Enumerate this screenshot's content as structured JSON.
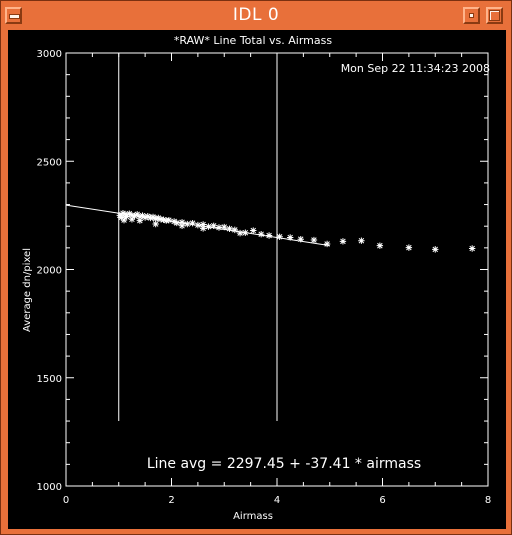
{
  "window": {
    "title": "IDL 0",
    "icons": {
      "menu": "window-menu-icon",
      "minimize": "minimize-icon",
      "maximize": "maximize-icon"
    }
  },
  "colors": {
    "frame": "#e8703a",
    "background": "#000000",
    "foreground": "#ffffff"
  },
  "chart_data": {
    "type": "scatter",
    "title": "*RAW* Line Total vs. Airmass",
    "timestamp": "Mon Sep 22 11:34:23 2008",
    "xlabel": "Airmass",
    "ylabel": "Average dn/pixel",
    "xlim": [
      0,
      8
    ],
    "ylim": [
      1000,
      3000
    ],
    "xticks": [
      0,
      2,
      4,
      6,
      8
    ],
    "yticks": [
      1000,
      1500,
      2000,
      2500,
      3000
    ],
    "xtick_labels": [
      "0",
      "2",
      "4",
      "6",
      "8"
    ],
    "ytick_labels": [
      "1000",
      "1500",
      "2000",
      "2500",
      "3000"
    ],
    "grid": false,
    "marker": "asterisk",
    "fit_line": {
      "intercept": 2297.45,
      "slope": -37.41,
      "x_range": [
        0,
        5
      ]
    },
    "fit_label": "Line avg = 2297.45 + -37.41 * airmass",
    "vertical_lines": [
      {
        "x": 1.0,
        "y_range": [
          1300,
          3000
        ]
      },
      {
        "x": 4.0,
        "y_range": [
          1300,
          3000
        ]
      }
    ],
    "points": [
      {
        "x": 1.02,
        "y": 2250
      },
      {
        "x": 1.05,
        "y": 2240
      },
      {
        "x": 1.08,
        "y": 2260
      },
      {
        "x": 1.12,
        "y": 2255
      },
      {
        "x": 1.15,
        "y": 2245
      },
      {
        "x": 1.2,
        "y": 2258
      },
      {
        "x": 1.25,
        "y": 2250
      },
      {
        "x": 1.3,
        "y": 2247
      },
      {
        "x": 1.35,
        "y": 2255
      },
      {
        "x": 1.4,
        "y": 2244
      },
      {
        "x": 1.45,
        "y": 2249
      },
      {
        "x": 1.5,
        "y": 2240
      },
      {
        "x": 1.55,
        "y": 2246
      },
      {
        "x": 1.6,
        "y": 2238
      },
      {
        "x": 1.65,
        "y": 2243
      },
      {
        "x": 1.7,
        "y": 2235
      },
      {
        "x": 1.75,
        "y": 2238
      },
      {
        "x": 1.8,
        "y": 2232
      },
      {
        "x": 1.85,
        "y": 2230
      },
      {
        "x": 1.9,
        "y": 2226
      },
      {
        "x": 1.95,
        "y": 2228
      },
      {
        "x": 1.1,
        "y": 2228
      },
      {
        "x": 1.25,
        "y": 2232
      },
      {
        "x": 1.4,
        "y": 2226
      },
      {
        "x": 1.7,
        "y": 2210
      },
      {
        "x": 2.05,
        "y": 2222
      },
      {
        "x": 2.1,
        "y": 2215
      },
      {
        "x": 2.2,
        "y": 2218
      },
      {
        "x": 2.3,
        "y": 2210
      },
      {
        "x": 2.4,
        "y": 2214
      },
      {
        "x": 2.5,
        "y": 2205
      },
      {
        "x": 2.6,
        "y": 2208
      },
      {
        "x": 2.7,
        "y": 2198
      },
      {
        "x": 2.8,
        "y": 2202
      },
      {
        "x": 2.9,
        "y": 2194
      },
      {
        "x": 3.0,
        "y": 2196
      },
      {
        "x": 2.2,
        "y": 2202
      },
      {
        "x": 2.6,
        "y": 2190
      },
      {
        "x": 3.1,
        "y": 2188
      },
      {
        "x": 3.2,
        "y": 2183
      },
      {
        "x": 3.3,
        "y": 2168
      },
      {
        "x": 3.4,
        "y": 2170
      },
      {
        "x": 3.55,
        "y": 2180
      },
      {
        "x": 3.7,
        "y": 2163
      },
      {
        "x": 3.85,
        "y": 2157
      },
      {
        "x": 4.05,
        "y": 2151
      },
      {
        "x": 4.25,
        "y": 2148
      },
      {
        "x": 4.45,
        "y": 2140
      },
      {
        "x": 4.7,
        "y": 2136
      },
      {
        "x": 4.95,
        "y": 2118
      },
      {
        "x": 5.25,
        "y": 2130
      },
      {
        "x": 5.6,
        "y": 2133
      },
      {
        "x": 5.95,
        "y": 2110
      },
      {
        "x": 6.5,
        "y": 2101
      },
      {
        "x": 7.0,
        "y": 2093
      },
      {
        "x": 7.7,
        "y": 2097
      }
    ]
  }
}
